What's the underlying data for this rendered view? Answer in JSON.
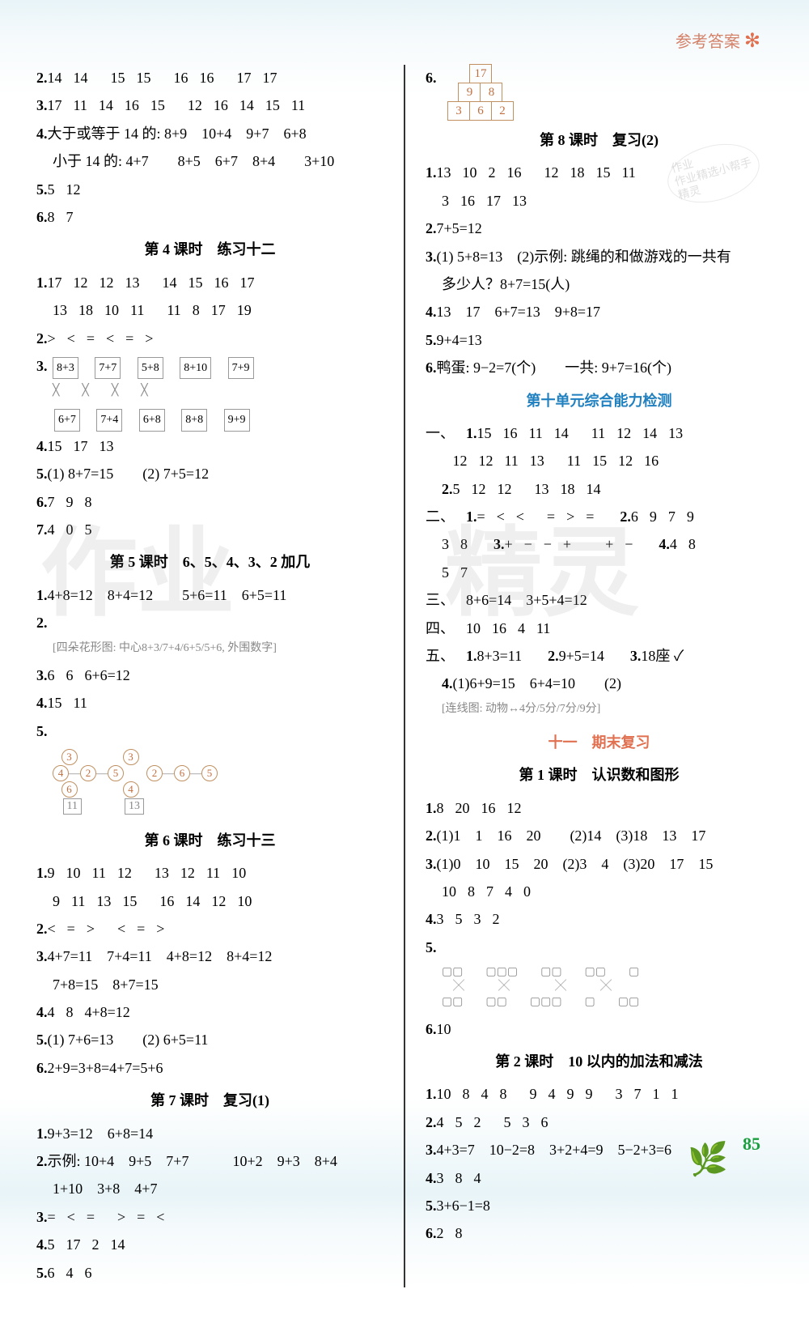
{
  "header": {
    "title": "参考答案",
    "star": "✻"
  },
  "page_number": "85",
  "watermark": {
    "left": "作业",
    "right": "精灵"
  },
  "stamp": "作业\n作业精选小帮手\n精灵",
  "left": {
    "l1": {
      "n": "2.",
      "vals": [
        "14",
        "14",
        "",
        "15",
        "15",
        "",
        "16",
        "16",
        "",
        "17",
        "17"
      ]
    },
    "l2": {
      "n": "3.",
      "vals": [
        "17",
        "11",
        "14",
        "16",
        "15",
        "",
        "12",
        "16",
        "14",
        "15",
        "11"
      ]
    },
    "l3": {
      "n": "4.",
      "text": "大于或等于 14 的: 8+9　10+4　9+7　6+8"
    },
    "l3b": {
      "text": "小于 14 的: 4+7　　8+5　6+7　8+4　　3+10"
    },
    "l4": {
      "n": "5.",
      "vals": [
        "5",
        "12"
      ]
    },
    "l5": {
      "n": "6.",
      "vals": [
        "8",
        "7"
      ]
    },
    "sec4": "第 4 课时　练习十二",
    "s4_1": {
      "n": "1.",
      "vals": [
        "17",
        "12",
        "12",
        "13",
        "",
        "14",
        "15",
        "16",
        "17"
      ]
    },
    "s4_1b": {
      "vals": [
        "13",
        "18",
        "10",
        "11",
        "",
        "11",
        "8",
        "17",
        "19"
      ]
    },
    "s4_2": {
      "n": "2.",
      "vals": [
        ">",
        "<",
        "=",
        "<",
        "=",
        ">"
      ]
    },
    "s4_3": {
      "n": "3.",
      "top": [
        "8+3",
        "7+7",
        "5+8",
        "8+10",
        "7+9"
      ],
      "bot": [
        "6+7",
        "7+4",
        "6+8",
        "8+8",
        "9+9"
      ]
    },
    "s4_4": {
      "n": "4.",
      "vals": [
        "15",
        "17",
        "13"
      ]
    },
    "s4_5": {
      "n": "5.",
      "text": "(1) 8+7=15　　(2) 7+5=12"
    },
    "s4_6": {
      "n": "6.",
      "vals": [
        "7",
        "9",
        "8"
      ]
    },
    "s4_7": {
      "n": "7.",
      "vals": [
        "4",
        "0",
        "5"
      ]
    },
    "sec5": "第 5 课时　6、5、4、3、2 加几",
    "s5_1": {
      "n": "1.",
      "text": "4+8=12　8+4=12　　5+6=11　6+5=11"
    },
    "s5_2": {
      "n": "2.",
      "flowers": "[四朵花形图: 中心8+3/7+4/6+5/5+6, 外围数字]"
    },
    "s5_3": {
      "n": "3.",
      "vals": [
        "6",
        "6",
        "6+6=12"
      ]
    },
    "s5_4": {
      "n": "4.",
      "vals": [
        "15",
        "11"
      ]
    },
    "s5_5": {
      "n": "5.",
      "dia": "[树形图: 3-4-2-5-6→11 | 3-2-6-5-4→13]"
    },
    "sec6": "第 6 课时　练习十三",
    "s6_1": {
      "n": "1.",
      "vals": [
        "9",
        "10",
        "11",
        "12",
        "",
        "13",
        "12",
        "11",
        "10"
      ]
    },
    "s6_1b": {
      "vals": [
        "9",
        "11",
        "13",
        "15",
        "",
        "16",
        "14",
        "12",
        "10"
      ]
    },
    "s6_2": {
      "n": "2.",
      "vals": [
        "<",
        "=",
        ">",
        "",
        "<",
        "=",
        ">"
      ]
    },
    "s6_3": {
      "n": "3.",
      "text": "4+7=11　7+4=11　4+8=12　8+4=12"
    },
    "s6_3b": {
      "text": "7+8=15　8+7=15"
    },
    "s6_4": {
      "n": "4.",
      "vals": [
        "4",
        "8",
        "4+8=12"
      ]
    },
    "s6_5": {
      "n": "5.",
      "text": "(1) 7+6=13　　(2) 6+5=11"
    },
    "s6_6": {
      "n": "6.",
      "text": "2+9=3+8=4+7=5+6"
    },
    "sec7": "第 7 课时　复习(1)",
    "s7_1": {
      "n": "1.",
      "text": "9+3=12　6+8=14"
    },
    "s7_2": {
      "n": "2.",
      "text": "示例: 10+4　9+5　7+7　　　10+2　9+3　8+4"
    },
    "s7_2b": {
      "text": "1+10　3+8　4+7"
    },
    "s7_3": {
      "n": "3.",
      "vals": [
        "=",
        "<",
        "=",
        "",
        ">",
        "=",
        "<"
      ]
    },
    "s7_4": {
      "n": "4.",
      "vals": [
        "5",
        "17",
        "2",
        "14"
      ]
    },
    "s7_5": {
      "n": "5.",
      "vals": [
        "6",
        "4",
        "6"
      ]
    }
  },
  "right": {
    "r6": {
      "n": "6.",
      "pyramid": [
        [
          "17"
        ],
        [
          "9",
          "8"
        ],
        [
          "3",
          "6",
          "2"
        ]
      ]
    },
    "sec8": "第 8 课时　复习(2)",
    "s8_1": {
      "n": "1.",
      "vals": [
        "13",
        "10",
        "2",
        "16",
        "",
        "12",
        "18",
        "15",
        "11"
      ]
    },
    "s8_1b": {
      "vals": [
        "3",
        "16",
        "17",
        "13"
      ]
    },
    "s8_2": {
      "n": "2.",
      "text": "7+5=12"
    },
    "s8_3": {
      "n": "3.",
      "text": "(1) 5+8=13　(2)示例: 跳绳的和做游戏的一共有"
    },
    "s8_3b": {
      "text": "多少人？8+7=15(人)"
    },
    "s8_4": {
      "n": "4.",
      "text": "13　17　6+7=13　9+8=17"
    },
    "s8_5": {
      "n": "5.",
      "text": "9+4=13"
    },
    "s8_6": {
      "n": "6.",
      "text": "鸭蛋: 9−2=7(个)　　一共: 9+7=16(个)"
    },
    "sec10": "第十单元综合能力检测",
    "u10_1_1": {
      "pre": "一、",
      "n": "1.",
      "vals": [
        "15",
        "16",
        "11",
        "14",
        "",
        "11",
        "12",
        "14",
        "13"
      ]
    },
    "u10_1_1b": {
      "vals": [
        "12",
        "12",
        "11",
        "13",
        "",
        "11",
        "15",
        "12",
        "16"
      ]
    },
    "u10_1_2": {
      "n": "2.",
      "vals": [
        "5",
        "12",
        "12",
        "",
        "13",
        "18",
        "14"
      ]
    },
    "u10_2": {
      "pre": "二、",
      "n1": "1.",
      "v1": [
        "=",
        "<",
        "<",
        "",
        "=",
        ">",
        "="
      ],
      "n2": "2.",
      "v2": [
        "6",
        "9",
        "7",
        "9"
      ]
    },
    "u10_2b": {
      "v1": [
        "3",
        "8"
      ],
      "n3": "3.",
      "v3": [
        "+",
        "−",
        "−",
        "+",
        "",
        "",
        "+",
        "−"
      ],
      "n4": "4.",
      "v4": [
        "4",
        "8"
      ]
    },
    "u10_2c": {
      "vals": [
        "5",
        "7"
      ]
    },
    "u10_3": {
      "pre": "三、",
      "text": "8+6=14　3+5+4=12"
    },
    "u10_4": {
      "pre": "四、",
      "vals": [
        "10",
        "16",
        "4",
        "11"
      ]
    },
    "u10_5": {
      "pre": "五、",
      "n1": "1.",
      "t1": "8+3=11",
      "n2": "2.",
      "t2": "9+5=14",
      "n3": "3.",
      "t3": "18座 ✓"
    },
    "u10_5b": {
      "n": "4.",
      "text": "(1)6+9=15　6+4=10　　(2)"
    },
    "u10_5c": {
      "dia": "[连线图: 动物↔4分/5分/7分/9分]"
    },
    "sec11": "十一　期末复习",
    "sec11_1": "第 1 课时　认识数和图形",
    "s11_1": {
      "n": "1.",
      "vals": [
        "8",
        "20",
        "16",
        "12"
      ]
    },
    "s11_2": {
      "n": "2.",
      "text": "(1)1　1　16　20　　(2)14　(3)18　13　17"
    },
    "s11_3": {
      "n": "3.",
      "text": "(1)0　10　15　20　(2)3　4　(3)20　17　15"
    },
    "s11_3b": {
      "vals": [
        "10",
        "8",
        "7",
        "4",
        "0"
      ]
    },
    "s11_4": {
      "n": "4.",
      "vals": [
        "3",
        "5",
        "3",
        "2"
      ]
    },
    "s11_5": {
      "n": "5.",
      "dia": "[立方体连线图]"
    },
    "s11_6": {
      "n": "6.",
      "text": "10"
    },
    "sec11_2": "第 2 课时　10 以内的加法和减法",
    "s2_1": {
      "n": "1.",
      "vals": [
        "10",
        "8",
        "4",
        "8",
        "",
        "9",
        "4",
        "9",
        "9",
        "",
        "3",
        "7",
        "1",
        "1"
      ]
    },
    "s2_2": {
      "n": "2.",
      "vals": [
        "4",
        "5",
        "2",
        "",
        "5",
        "3",
        "6"
      ]
    },
    "s2_3": {
      "n": "3.",
      "text": "4+3=7　10−2=8　3+2+4=9　5−2+3=6"
    },
    "s2_4": {
      "n": "4.",
      "vals": [
        "3",
        "8",
        "4"
      ]
    },
    "s2_5": {
      "n": "5.",
      "text": "3+6−1=8"
    },
    "s2_6": {
      "n": "6.",
      "vals": [
        "2",
        "8"
      ]
    }
  }
}
